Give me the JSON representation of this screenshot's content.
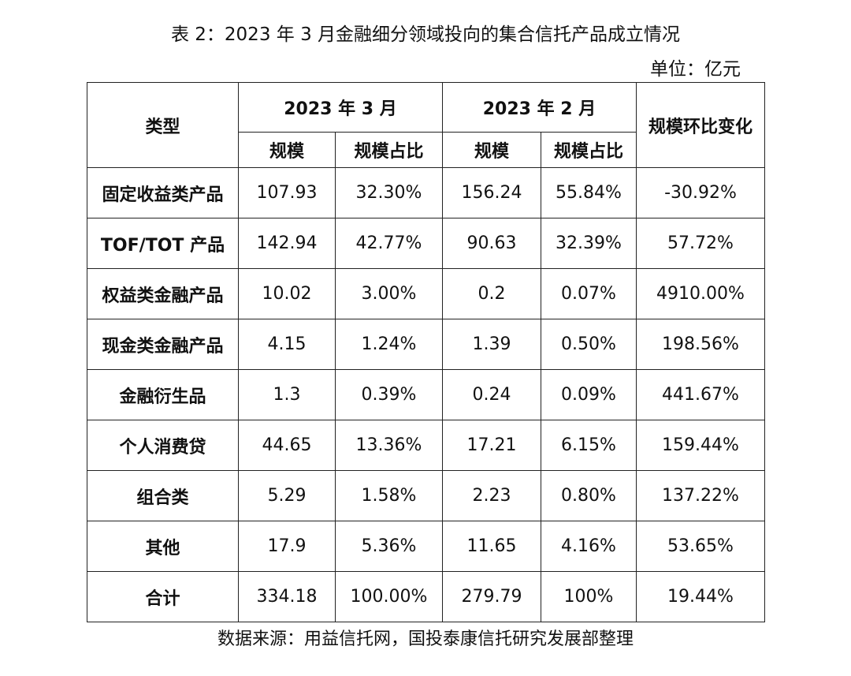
{
  "title": "表 2：2023 年 3 月金融细分领域投向的集合信托产品成立情况",
  "unit": "单位：亿元",
  "table": {
    "header": {
      "category": "类型",
      "period1": "2023 年 3 月",
      "period2": "2023 年 2 月",
      "change": "规模环比变化",
      "scale": "规模",
      "share": "规模占比"
    },
    "rows": [
      {
        "category": "固定收益类产品",
        "mar_scale": "107.93",
        "mar_share": "32.30%",
        "feb_scale": "156.24",
        "feb_share": "55.84%",
        "change": "-30.92%"
      },
      {
        "category": "TOF/TOT 产品",
        "mar_scale": "142.94",
        "mar_share": "42.77%",
        "feb_scale": "90.63",
        "feb_share": "32.39%",
        "change": "57.72%"
      },
      {
        "category": "权益类金融产品",
        "mar_scale": "10.02",
        "mar_share": "3.00%",
        "feb_scale": "0.2",
        "feb_share": "0.07%",
        "change": "4910.00%"
      },
      {
        "category": "现金类金融产品",
        "mar_scale": "4.15",
        "mar_share": "1.24%",
        "feb_scale": "1.39",
        "feb_share": "0.50%",
        "change": "198.56%"
      },
      {
        "category": "金融衍生品",
        "mar_scale": "1.3",
        "mar_share": "0.39%",
        "feb_scale": "0.24",
        "feb_share": "0.09%",
        "change": "441.67%"
      },
      {
        "category": "个人消费贷",
        "mar_scale": "44.65",
        "mar_share": "13.36%",
        "feb_scale": "17.21",
        "feb_share": "6.15%",
        "change": "159.44%"
      },
      {
        "category": "组合类",
        "mar_scale": "5.29",
        "mar_share": "1.58%",
        "feb_scale": "2.23",
        "feb_share": "0.80%",
        "change": "137.22%"
      },
      {
        "category": "其他",
        "mar_scale": "17.9",
        "mar_share": "5.36%",
        "feb_scale": "11.65",
        "feb_share": "4.16%",
        "change": "53.65%"
      },
      {
        "category": "合计",
        "mar_scale": "334.18",
        "mar_share": "100.00%",
        "feb_scale": "279.79",
        "feb_share": "100%",
        "change": "19.44%"
      }
    ]
  },
  "source": "数据来源：用益信托网，国投泰康信托研究发展部整理"
}
